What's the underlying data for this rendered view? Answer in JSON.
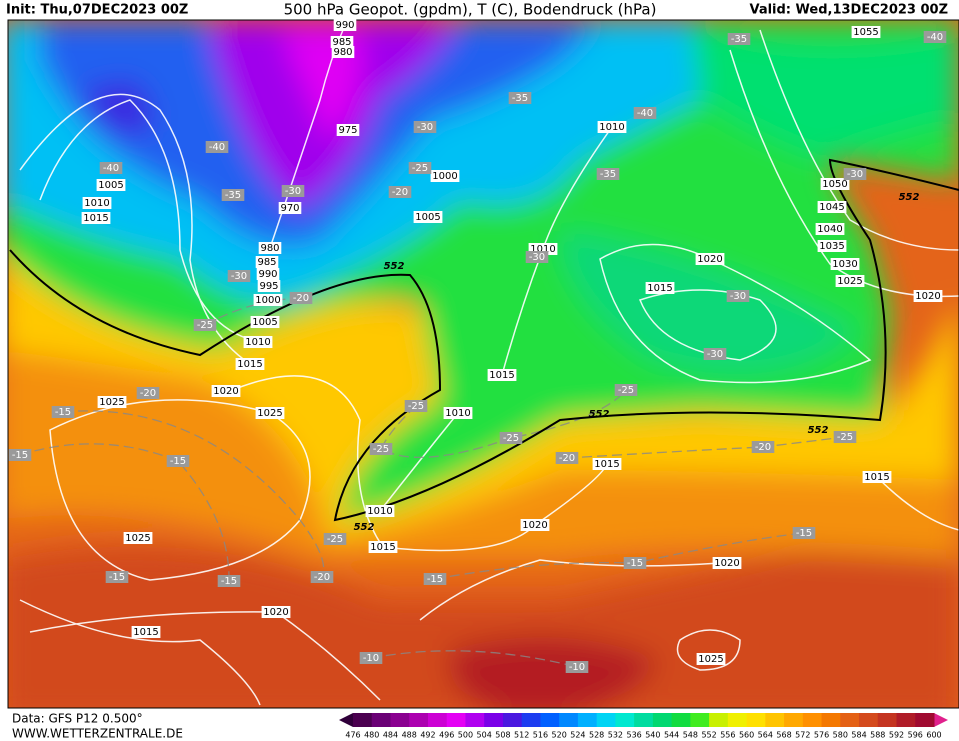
{
  "header": {
    "init": "Init: Thu,07DEC2023 00Z",
    "title": "500 hPa Geopot. (gpdm), T (C), Bodendruck (hPa)",
    "valid": "Valid: Wed,13DEC2023 00Z"
  },
  "footer": {
    "data": "Data: GFS P12 0.500°",
    "site": "WWW.WETTERZENTRALE.DE"
  },
  "colorbar": {
    "ticks": [
      476,
      480,
      484,
      488,
      492,
      496,
      500,
      504,
      508,
      512,
      516,
      520,
      524,
      528,
      532,
      536,
      540,
      544,
      548,
      552,
      556,
      560,
      564,
      568,
      572,
      576,
      580,
      584,
      588,
      592,
      596,
      600
    ],
    "colors": [
      "#4b0050",
      "#6a0075",
      "#8a0090",
      "#ac00b0",
      "#cc00d4",
      "#e400f4",
      "#b000f0",
      "#7a00e8",
      "#4a18e0",
      "#1c3cf0",
      "#0060ff",
      "#0088ff",
      "#00b0ff",
      "#00d4f4",
      "#00e8d0",
      "#00dca0",
      "#00d870",
      "#10dc40",
      "#40ec20",
      "#c8f000",
      "#f0f000",
      "#ffe000",
      "#ffc400",
      "#ffa800",
      "#ff9000",
      "#f47800",
      "#e46014",
      "#d44a1c",
      "#c43420",
      "#b01c28",
      "#a00a30"
    ],
    "low_color": "#30003a",
    "high_color": "#e0208c"
  },
  "map": {
    "isobar_labels": [
      990,
      985,
      980,
      975,
      970,
      980,
      985,
      990,
      995,
      1000,
      1005,
      1010,
      1015,
      1020,
      1025,
      1025,
      1005,
      1010,
      1015,
      1000,
      1005,
      1010,
      1010,
      1020,
      1015,
      1015,
      1010,
      1010,
      1015,
      1020,
      1015,
      1025,
      1020,
      1015,
      1020,
      1025,
      1015,
      1020,
      1025,
      1030,
      1035,
      1040,
      1045,
      1050,
      1055
    ],
    "temperature_labels": [
      -35,
      -40,
      -35,
      -40,
      -30,
      -40,
      -40,
      -35,
      -30,
      -25,
      -20,
      -35,
      -30,
      -30,
      -30,
      -20,
      -25,
      -30,
      -30,
      -25,
      -20,
      -15,
      -15,
      -25,
      -25,
      -25,
      -20,
      -20,
      -25,
      -15,
      -25,
      -15,
      -15,
      -20,
      -15,
      -15,
      -15,
      -10,
      -10
    ],
    "geopotential_labels": [
      552,
      552,
      552,
      552,
      552
    ]
  }
}
